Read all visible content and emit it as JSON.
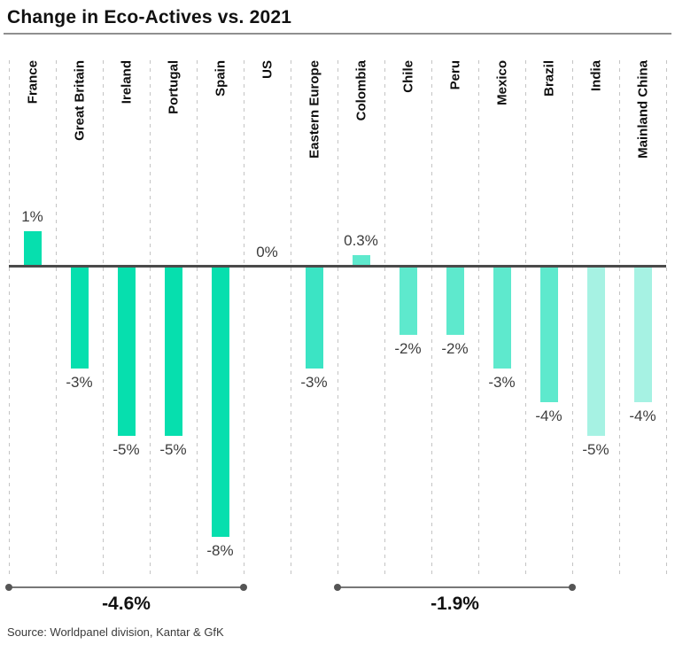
{
  "header": {
    "title": "Change in Eco-Actives vs. 2021"
  },
  "footer": {
    "source": "Source: Worldpanel division, Kantar & GfK"
  },
  "colors": {
    "west_europe_bar": "#06DFAE",
    "east_europe_bar": "#3BE4C4",
    "latam_bar": "#5EE9CD",
    "asia_bar": "#A6F2E3",
    "zero_line": "#4A4A4A",
    "gridline": "#C4C4C4",
    "bracket": "#777777",
    "bracket_dot": "#555555",
    "value_label": "#3C3C3C",
    "title_text": "#111111"
  },
  "chart_data": {
    "type": "bar",
    "title": "Change in Eco-Actives vs. 2021",
    "categories": [
      "France",
      "Great Britain",
      "Ireland",
      "Portugal",
      "Spain",
      "US",
      "Eastern Europe",
      "Colombia",
      "Chile",
      "Peru",
      "Mexico",
      "Brazil",
      "India",
      "Mainland China"
    ],
    "values": [
      1,
      -3,
      -5,
      -5,
      -8,
      0,
      -3,
      0.3,
      -2,
      -2,
      -3,
      -4,
      -5,
      -4
    ],
    "value_labels": [
      "1%",
      "-3%",
      "-5%",
      "-5%",
      "-8%",
      "0%",
      "-3%",
      "0.3%",
      "-2%",
      "-2%",
      "-3%",
      "-4%",
      "-5%",
      "-4%"
    ],
    "bar_color_keys": [
      "west_europe_bar",
      "west_europe_bar",
      "west_europe_bar",
      "west_europe_bar",
      "west_europe_bar",
      "west_europe_bar",
      "east_europe_bar",
      "latam_bar",
      "latam_bar",
      "latam_bar",
      "latam_bar",
      "latam_bar",
      "asia_bar",
      "asia_bar"
    ],
    "ylim": [
      -8.5,
      1.5
    ],
    "grid": "vertical-dashed",
    "legend": "none",
    "xlabel": "",
    "ylabel": "",
    "groups": [
      {
        "label": "-4.6%",
        "start_col": 0,
        "end_col": 4
      },
      {
        "label": "-1.9%",
        "start_col": 7,
        "end_col": 11
      }
    ]
  }
}
